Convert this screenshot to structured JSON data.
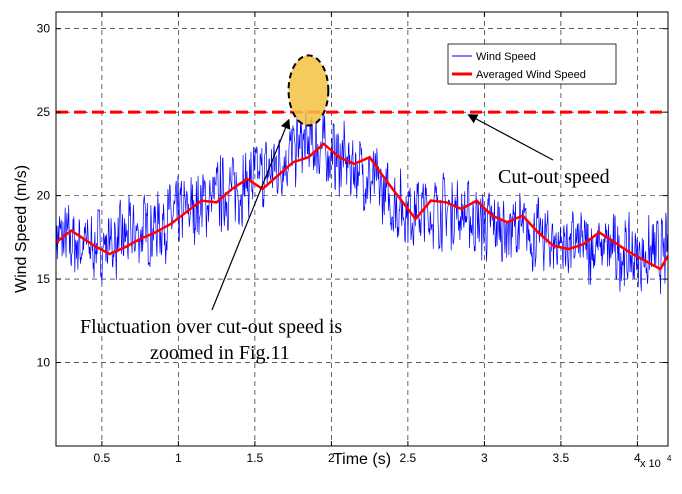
{
  "chart_data": {
    "type": "line",
    "xlabel": "Time (s)",
    "ylabel": "Wind Speed (m/s)",
    "x_multiplier": "x 10",
    "x_multiplier_exp": "4",
    "xlim": [
      0.2,
      4.2
    ],
    "ylim": [
      5,
      31
    ],
    "xticks": [
      0.5,
      1,
      1.5,
      2,
      2.5,
      3,
      3.5,
      4
    ],
    "xtick_labels": [
      "0.5",
      "1",
      "1.5",
      "2",
      "2.5",
      "3",
      "3.5",
      "4"
    ],
    "yticks": [
      10,
      15,
      20,
      25,
      30
    ],
    "ytick_labels": [
      "10",
      "15",
      "20",
      "25",
      "30"
    ],
    "grid": true,
    "legend_position": "top-right",
    "series": [
      {
        "name": "Wind Speed",
        "color": "#0000ff",
        "style": "noisy",
        "x": [
          0.2,
          0.4,
          0.6,
          0.8,
          1.0,
          1.2,
          1.4,
          1.6,
          1.8,
          1.9,
          2.0,
          2.2,
          2.4,
          2.6,
          2.8,
          3.0,
          3.2,
          3.4,
          3.6,
          3.8,
          4.0,
          4.2
        ],
        "values": [
          17.5,
          17.0,
          17.2,
          18.0,
          18.8,
          19.8,
          20.5,
          21.5,
          23.0,
          23.0,
          22.5,
          21.5,
          19.5,
          19.0,
          19.2,
          18.2,
          18.0,
          17.4,
          17.0,
          16.8,
          16.3,
          16.5
        ],
        "noise_amplitude": 1.3
      },
      {
        "name": "Averaged Wind Speed",
        "color": "#ff0000",
        "x": [
          0.2,
          0.3,
          0.45,
          0.55,
          0.65,
          0.75,
          0.85,
          0.95,
          1.05,
          1.15,
          1.25,
          1.35,
          1.45,
          1.55,
          1.65,
          1.75,
          1.85,
          1.95,
          2.05,
          2.15,
          2.25,
          2.35,
          2.45,
          2.55,
          2.65,
          2.75,
          2.85,
          2.95,
          3.05,
          3.15,
          3.25,
          3.35,
          3.45,
          3.55,
          3.65,
          3.75,
          3.85,
          3.95,
          4.05,
          4.15,
          4.2
        ],
        "values": [
          17.2,
          17.9,
          17.0,
          16.5,
          16.9,
          17.4,
          17.8,
          18.3,
          19.0,
          19.7,
          19.6,
          20.4,
          21.0,
          20.4,
          21.2,
          22.0,
          22.3,
          23.1,
          22.3,
          21.9,
          22.3,
          21.0,
          19.8,
          18.6,
          19.7,
          19.6,
          19.2,
          19.7,
          18.8,
          18.4,
          18.8,
          17.8,
          17.0,
          16.8,
          17.1,
          17.8,
          17.2,
          16.6,
          16.1,
          15.6,
          16.4
        ]
      },
      {
        "name": "Cut-out speed",
        "color": "#ff0000",
        "style": "dashed",
        "x": [
          0.2,
          4.2
        ],
        "values": [
          25,
          25
        ]
      }
    ],
    "annotations": [
      {
        "text": "Cut-out speed",
        "arrow_to": [
          2.9,
          25
        ]
      },
      {
        "lines": [
          "Fluctuation over cut-out speed is",
          "zoomed in Fig.11"
        ],
        "arrow_to": [
          1.72,
          24.5
        ]
      }
    ],
    "highlight_ellipse": {
      "cx": 1.85,
      "cy": 26.3,
      "rx": 0.13,
      "ry": 2.1,
      "fill": "#f5c242"
    }
  }
}
